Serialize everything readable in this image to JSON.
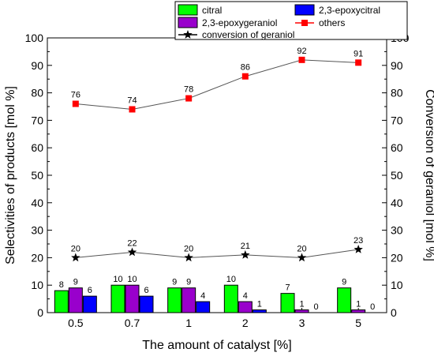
{
  "chart_data": {
    "type": "bar",
    "categories": [
      "0.5",
      "0.7",
      "1",
      "2",
      "3",
      "5"
    ],
    "xlabel": "The amount of catalyst [%]",
    "ylabel": "Selectivities of products [mol %]",
    "y2label": "Conversion of geraniol [mol %]",
    "ylim": [
      0,
      100
    ],
    "y2lim": [
      0,
      100
    ],
    "yticks": [
      "0",
      "10",
      "20",
      "30",
      "40",
      "50",
      "60",
      "70",
      "80",
      "90",
      "100"
    ],
    "series": [
      {
        "name": "citral",
        "kind": "bar",
        "color": "#00ff00",
        "values": [
          8,
          10,
          9,
          10,
          7,
          9
        ],
        "labels": [
          "8",
          "10",
          "9",
          "10",
          "7",
          "9"
        ]
      },
      {
        "name": "2,3-epoxygeraniol",
        "kind": "bar",
        "color": "#9900cc",
        "values": [
          9,
          10,
          9,
          4,
          1,
          1
        ],
        "labels": [
          "9",
          "10",
          "9",
          "4",
          "1",
          "1"
        ]
      },
      {
        "name": "2,3-epoxycitral",
        "kind": "bar",
        "color": "#0000ff",
        "values": [
          6,
          6,
          4,
          1,
          0,
          0
        ],
        "labels": [
          "6",
          "6",
          "4",
          "1",
          "0",
          "0"
        ]
      },
      {
        "name": "others",
        "kind": "line",
        "marker": "square",
        "color": "#ff0000",
        "values": [
          76,
          74,
          78,
          86,
          92,
          91
        ],
        "labels": [
          "76",
          "74",
          "78",
          "86",
          "92",
          "91"
        ]
      },
      {
        "name": "conversion of geraniol",
        "kind": "line",
        "marker": "star",
        "color": "#000000",
        "values": [
          20,
          22,
          20,
          21,
          20,
          23
        ],
        "labels": [
          "20",
          "22",
          "20",
          "21",
          "20",
          "23"
        ]
      }
    ],
    "legend_position": "top-center",
    "grid": false
  }
}
